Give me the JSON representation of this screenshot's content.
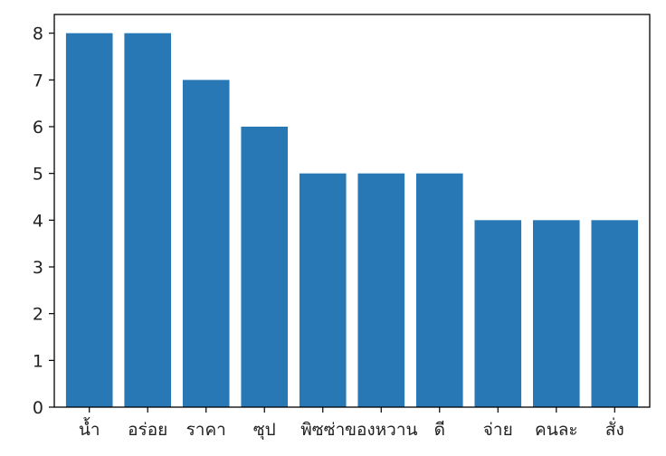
{
  "chart_data": {
    "type": "bar",
    "title": "",
    "xlabel": "",
    "ylabel": "",
    "categories": [
      "น้ำ",
      "อร่อย",
      "ราคา",
      "ซุป",
      "พิซซ่า",
      "ของหวาน",
      "ดี",
      "จ่าย",
      "คนละ",
      "สั่ง"
    ],
    "values": [
      8,
      8,
      7,
      6,
      5,
      5,
      5,
      4,
      4,
      4
    ],
    "ylim": [
      0,
      8.4
    ],
    "yticks": [
      "0",
      "1",
      "2",
      "3",
      "4",
      "5",
      "6",
      "7",
      "8"
    ],
    "bar_color": "#2878b5",
    "grid": false,
    "legend": "none"
  }
}
